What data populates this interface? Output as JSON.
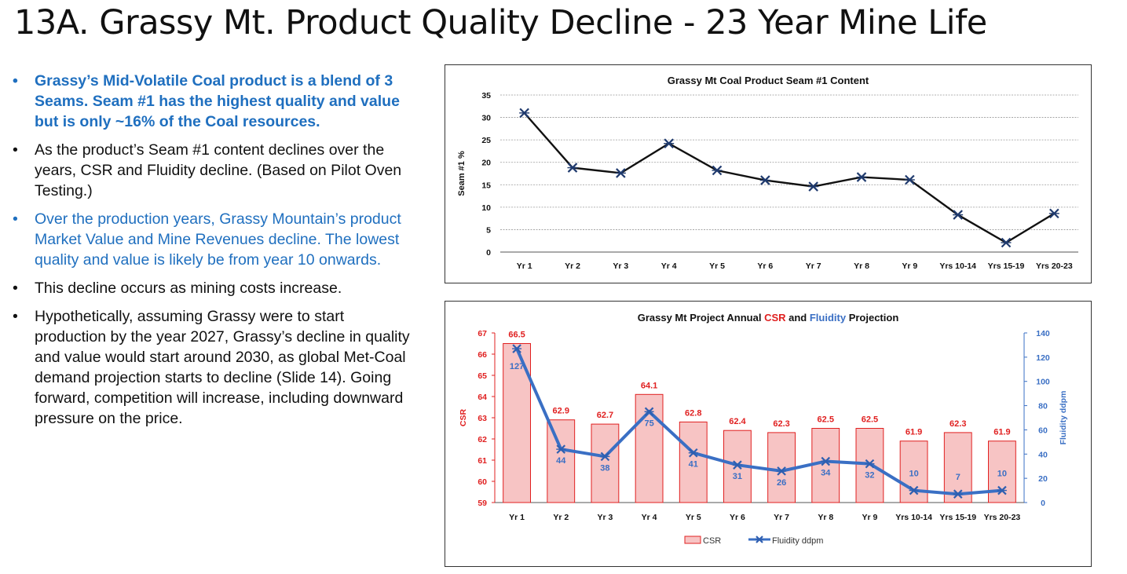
{
  "title": "13A. Grassy Mt. Product Quality Decline - 23 Year Mine Life",
  "bullets": [
    {
      "text": "Grassy’s Mid-Volatile Coal product is a blend of 3 Seams. Seam #1 has the highest quality and value but is only ~16% of the Coal resources.",
      "style": "blue bold"
    },
    {
      "text": "As the product’s Seam #1 content declines over the years, CSR and Fluidity decline. (Based on Pilot Oven Testing.)",
      "style": ""
    },
    {
      "text": "Over the production years, Grassy Mountain’s product Market Value and Mine Revenues decline. The lowest quality and value is likely be from year 10 onwards.",
      "style": "blue"
    },
    {
      "text": "This decline occurs as mining costs increase.",
      "style": ""
    },
    {
      "text": "Hypothetically, assuming Grassy were to start production by the year 2027, Grassy’s decline in quality and value would start around 2030, as global Met-Coal demand projection starts to decline (Slide 14). Going forward, competition will increase, including downward pressure on the price.",
      "style": ""
    }
  ],
  "colors": {
    "csr": "#e02020",
    "fluidity": "#3a6fc4",
    "bar_fill": "#f7c4c4",
    "seam_line": "#111111",
    "seam_marker": "#1f3a6e"
  },
  "chart_data": [
    {
      "type": "line",
      "title": "Grassy Mt Coal Product Seam #1 Content",
      "ylabel": "Seam #1 %",
      "xlabel": "",
      "categories": [
        "Yr 1",
        "Yr 2",
        "Yr 3",
        "Yr 4",
        "Yr 5",
        "Yr 6",
        "Yr 7",
        "Yr 8",
        "Yr 9",
        "Yrs 10-14",
        "Yrs 15-19",
        "Yrs 20-23"
      ],
      "values": [
        31,
        18.8,
        17.6,
        24.2,
        18.2,
        16,
        14.6,
        16.7,
        16.1,
        8.3,
        2.1,
        8.6
      ],
      "ylim": [
        0,
        35
      ],
      "yticks": [
        0,
        5,
        10,
        15,
        20,
        25,
        30,
        35
      ],
      "grid": true
    },
    {
      "type": "bar+line",
      "title_parts": [
        "Grassy Mt Project Annual ",
        "CSR",
        " and ",
        "Fluidity",
        " Projection"
      ],
      "categories": [
        "Yr 1",
        "Yr 2",
        "Yr 3",
        "Yr 4",
        "Yr 5",
        "Yr 6",
        "Yr 7",
        "Yr 8",
        "Yr 9",
        "Yrs 10-14",
        "Yrs 15-19",
        "Yrs 20-23"
      ],
      "series": [
        {
          "name": "CSR",
          "type": "bar",
          "axis": "left",
          "values": [
            66.5,
            62.9,
            62.7,
            64.1,
            62.8,
            62.4,
            62.3,
            62.5,
            62.5,
            61.9,
            62.3,
            61.9
          ],
          "labels": [
            "66.5",
            "62.9",
            "62.7",
            "64.1",
            "62.8",
            "62.4",
            "62.3",
            "62.5",
            "62.5",
            "61.9",
            "62.3",
            "61.9"
          ]
        },
        {
          "name": "Fluidity ddpm",
          "type": "line",
          "axis": "right",
          "values": [
            127,
            44,
            38,
            75,
            41,
            31,
            26,
            34,
            32,
            10,
            7,
            10
          ],
          "labels": [
            "127",
            "44",
            "38",
            "75",
            "41",
            "31",
            "26",
            "34",
            "32",
            "10",
            "7",
            "10"
          ]
        }
      ],
      "ylabel_left": "CSR",
      "ylabel_right": "Fluidity ddpm",
      "ylim_left": [
        59,
        67
      ],
      "yticks_left": [
        59,
        60,
        61,
        62,
        63,
        64,
        65,
        66,
        67
      ],
      "ylim_right": [
        0,
        140
      ],
      "yticks_right": [
        0,
        20,
        40,
        60,
        80,
        100,
        120,
        140
      ],
      "legend": [
        "CSR",
        "Fluidity ddpm"
      ],
      "legend_position": "bottom"
    }
  ]
}
